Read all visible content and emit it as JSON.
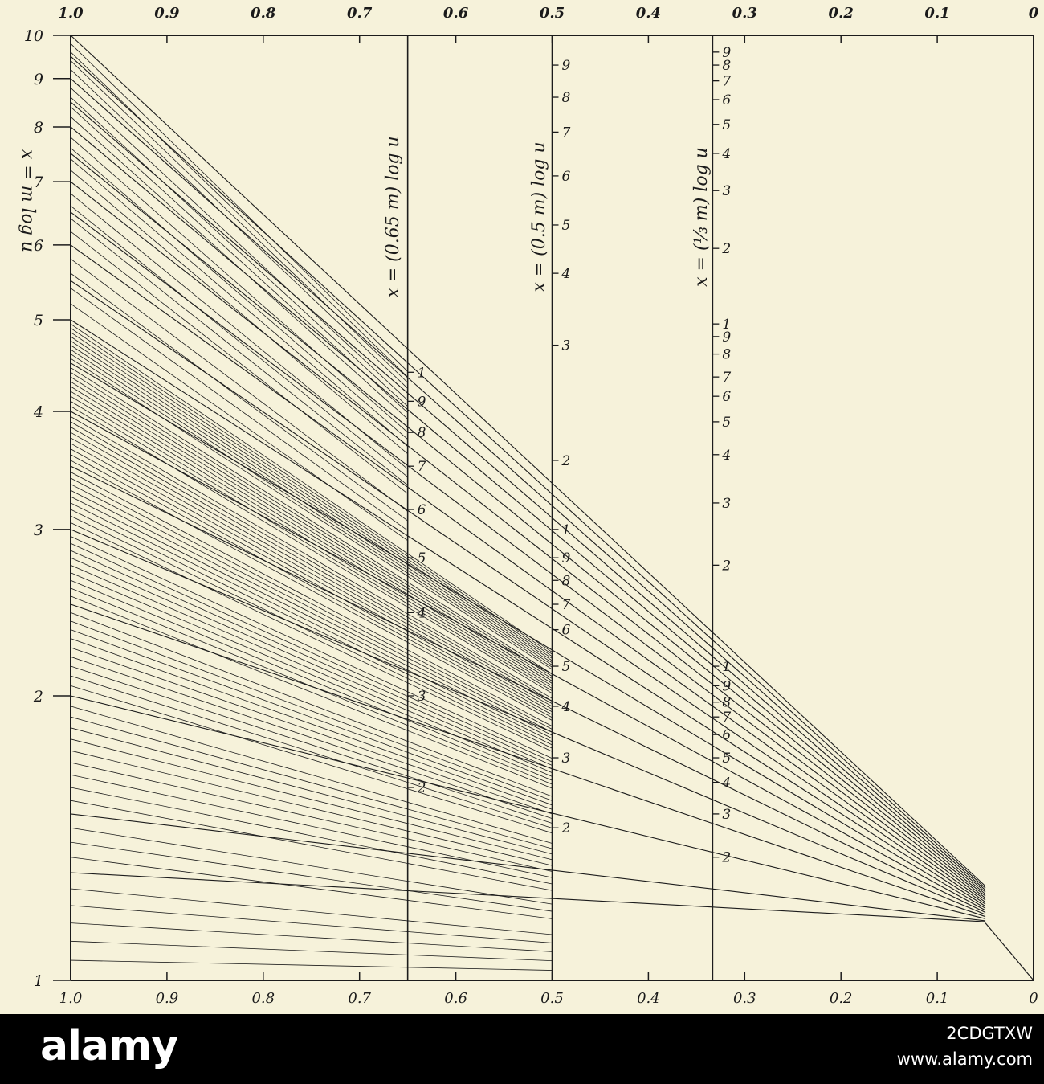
{
  "chart_data": {
    "type": "line",
    "title": "",
    "x_ticks_bottom": [
      "1.0",
      "0.9",
      "0.8",
      "0.7",
      "0.6",
      "0.5",
      "0.4",
      "0.3",
      "0.2",
      "0.1",
      "0"
    ],
    "x_ticks_top": [
      "1.0",
      "0.9",
      "0.8",
      "0.7",
      "0.6",
      "0.5",
      "0.4",
      "0.3",
      "0.2",
      "0.1",
      "0"
    ],
    "xlim": [
      1.0,
      0.0
    ],
    "y_scale": "log",
    "ylim": [
      1,
      10
    ],
    "left_axis": {
      "label": "x = m log u",
      "tick_labels": [
        "1",
        "2",
        "3",
        "4",
        "5",
        "6",
        "7",
        "8",
        "9",
        "10"
      ],
      "tick_values": [
        1,
        2,
        3,
        4,
        5,
        6,
        7,
        8,
        9,
        10
      ]
    },
    "vertical_scales": [
      {
        "x": 0.65,
        "label": "x = (0.65 m) log u",
        "marks": [
          {
            "label": "1",
            "y": 4.4
          },
          {
            "label": "9",
            "y": 4.1
          },
          {
            "label": "8",
            "y": 3.8
          },
          {
            "label": "7",
            "y": 3.5
          },
          {
            "label": "6",
            "y": 3.15
          },
          {
            "label": "5",
            "y": 2.8
          },
          {
            "label": "4",
            "y": 2.45
          },
          {
            "label": "3",
            "y": 2.0
          },
          {
            "label": "2",
            "y": 1.6
          }
        ]
      },
      {
        "x": 0.5,
        "label": "x = (0.5 m) log u",
        "marks_upper": [
          {
            "label": "9",
            "y": 9.3
          },
          {
            "label": "8",
            "y": 8.6
          },
          {
            "label": "7",
            "y": 7.9
          },
          {
            "label": "6",
            "y": 7.1
          },
          {
            "label": "5",
            "y": 6.3
          },
          {
            "label": "4",
            "y": 5.6
          },
          {
            "label": "3",
            "y": 4.7
          },
          {
            "label": "2",
            "y": 3.55
          }
        ],
        "marks_lower": [
          {
            "label": "1",
            "y": 3.0
          },
          {
            "label": "9",
            "y": 2.8
          },
          {
            "label": "8",
            "y": 2.65
          },
          {
            "label": "7",
            "y": 2.5
          },
          {
            "label": "6",
            "y": 2.35
          },
          {
            "label": "5",
            "y": 2.15
          },
          {
            "label": "4",
            "y": 1.95
          },
          {
            "label": "3",
            "y": 1.72
          },
          {
            "label": "2",
            "y": 1.45
          }
        ]
      },
      {
        "x": 0.3333,
        "label": "x = (⅓ m) log u",
        "marks_top": [
          {
            "label": "9",
            "y": 9.6
          },
          {
            "label": "8",
            "y": 9.3
          },
          {
            "label": "7",
            "y": 8.95
          },
          {
            "label": "6",
            "y": 8.55
          },
          {
            "label": "5",
            "y": 8.05
          },
          {
            "label": "4",
            "y": 7.5
          },
          {
            "label": "3",
            "y": 6.85
          },
          {
            "label": "2",
            "y": 5.95
          }
        ],
        "marks_mid": [
          {
            "label": "1",
            "y": 4.95
          },
          {
            "label": "9",
            "y": 4.8
          },
          {
            "label": "8",
            "y": 4.6
          },
          {
            "label": "7",
            "y": 4.35
          },
          {
            "label": "6",
            "y": 4.15
          },
          {
            "label": "5",
            "y": 3.9
          },
          {
            "label": "4",
            "y": 3.6
          },
          {
            "label": "3",
            "y": 3.2
          },
          {
            "label": "2",
            "y": 2.75
          }
        ],
        "marks_low": [
          {
            "label": "1",
            "y": 2.15
          },
          {
            "label": "9",
            "y": 2.05
          },
          {
            "label": "8",
            "y": 1.97
          },
          {
            "label": "7",
            "y": 1.9
          },
          {
            "label": "6",
            "y": 1.82
          },
          {
            "label": "5",
            "y": 1.72
          },
          {
            "label": "4",
            "y": 1.62
          },
          {
            "label": "3",
            "y": 1.5
          },
          {
            "label": "2",
            "y": 1.35
          }
        ]
      }
    ],
    "fan_groups": [
      {
        "start_values": [
          1.3,
          1.5,
          2.0,
          2.5,
          3.0,
          3.5,
          4.0,
          4.5,
          5.0,
          5.5,
          6.0,
          6.5,
          7.0,
          7.5,
          8.0,
          8.5,
          9.0,
          9.5,
          10.0
        ],
        "end_x": 0.05
      },
      {
        "start_values": [
          1.05,
          1.1,
          1.15,
          1.2,
          1.25,
          1.35,
          1.4,
          1.45,
          1.55,
          1.6,
          1.65,
          1.7,
          1.75,
          1.8,
          1.85,
          1.9,
          1.95,
          2.05,
          2.1,
          2.15,
          2.2,
          2.25,
          2.3,
          2.35,
          2.4,
          2.45,
          2.55,
          2.6,
          2.65,
          2.7,
          2.75,
          2.8,
          2.85,
          2.9,
          2.95,
          3.05,
          3.1,
          3.15,
          3.2,
          3.25,
          3.3,
          3.35,
          3.4,
          3.45,
          3.55,
          3.6,
          3.65,
          3.7,
          3.75,
          3.8,
          3.85,
          3.9,
          3.95,
          4.05,
          4.1,
          4.15,
          4.2,
          4.25,
          4.3,
          4.35,
          4.4,
          4.45,
          4.55,
          4.6,
          4.65,
          4.7,
          4.75,
          4.8,
          4.85,
          4.9,
          4.95
        ],
        "end_x": 0.5,
        "note_ratio": 0.5
      },
      {
        "start_values": [
          5.2,
          5.4,
          5.6,
          5.8,
          6.2,
          6.4,
          6.6,
          6.8,
          7.2,
          7.4,
          7.6,
          7.8,
          8.2,
          8.4,
          8.6,
          8.8,
          9.2,
          9.4,
          9.6,
          9.8
        ],
        "end_x": 0.65,
        "note_ratio": 0.65
      }
    ]
  },
  "watermark": {
    "logo": "alamy",
    "image_id": "2CDGTXW",
    "url": "www.alamy.com"
  }
}
